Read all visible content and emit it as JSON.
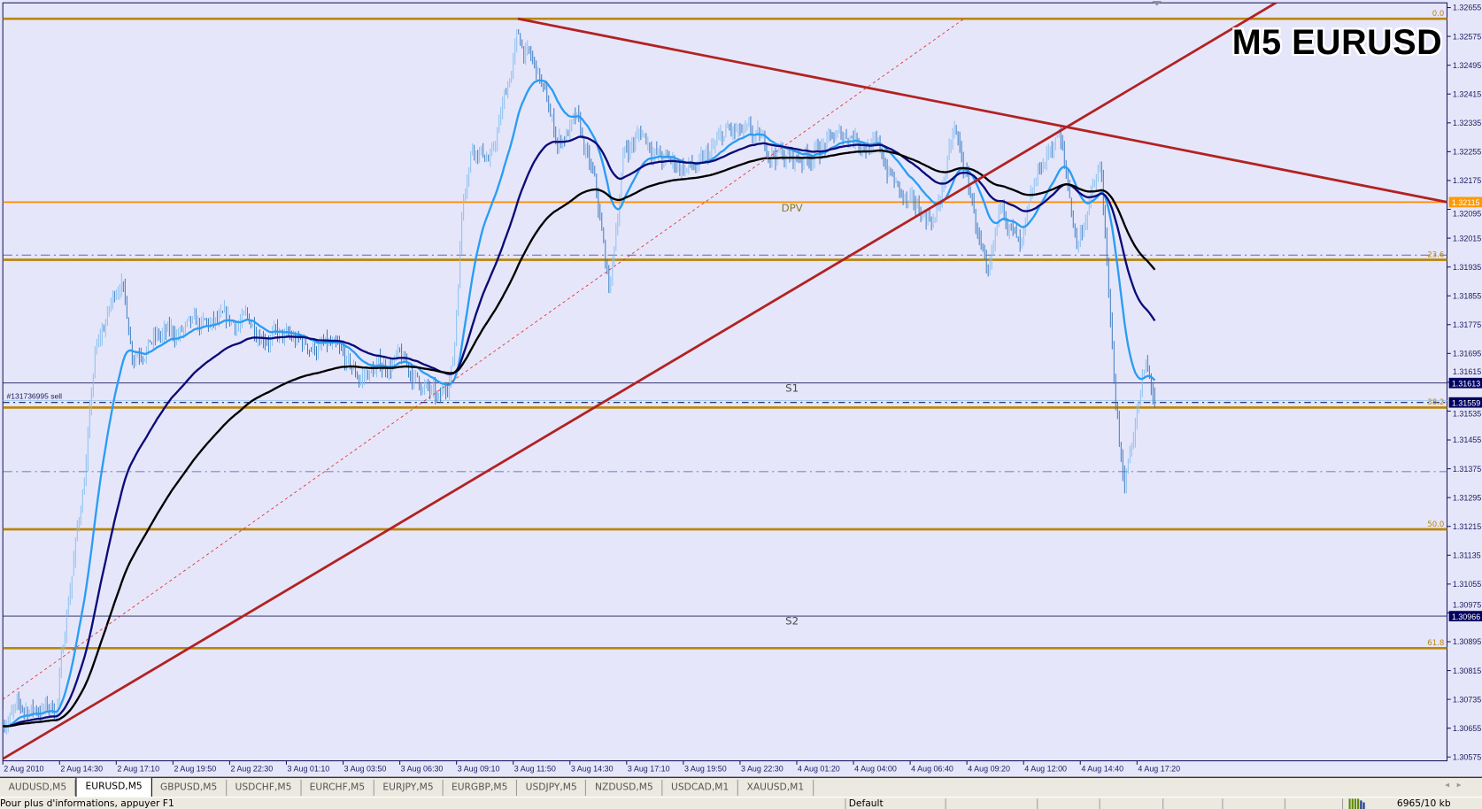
{
  "window": {
    "title": "M5 EURUSD",
    "symbol": "EURUSD",
    "timeframe": "M5"
  },
  "colors": {
    "background": "#e6e6fa",
    "frame": "#1a1a5e",
    "bar_up": "#86bff0",
    "bar_down": "#3478c0",
    "ma_fast": "#2a9df4",
    "ma_mid": "#0b0b78",
    "ma_slow": "#000000",
    "trendline": "#b22222",
    "fib": "#b8860b",
    "pivot": "#ff8c00",
    "support": "#1a1a5e",
    "label_navy": "#000060",
    "label_orange": "#ff9900",
    "dashdot": "#4a5aa8"
  },
  "chart_data": {
    "type": "ohlc-bar",
    "price_axis": {
      "range": [
        1.30575,
        1.32655
      ],
      "ticks": [
        "1.32655",
        "1.32575",
        "1.32495",
        "1.32415",
        "1.32335",
        "1.32255",
        "1.32175",
        "1.32095",
        "1.32015",
        "1.31935",
        "1.31855",
        "1.31775",
        "1.31695",
        "1.31615",
        "1.31535",
        "1.31455",
        "1.31375",
        "1.31295",
        "1.31215",
        "1.31135",
        "1.31055",
        "1.30975",
        "1.30895",
        "1.30815",
        "1.30735",
        "1.30655",
        "1.30575"
      ]
    },
    "time_axis": {
      "ticks": [
        "2 Aug 2010",
        "2 Aug 14:30",
        "2 Aug 17:10",
        "2 Aug 19:50",
        "2 Aug 22:30",
        "3 Aug 01:10",
        "3 Aug 03:50",
        "3 Aug 06:30",
        "3 Aug 09:10",
        "3 Aug 11:50",
        "3 Aug 14:30",
        "3 Aug 17:10",
        "3 Aug 19:50",
        "3 Aug 22:30",
        "4 Aug 01:20",
        "4 Aug 04:00",
        "4 Aug 06:40",
        "4 Aug 09:20",
        "4 Aug 12:00",
        "4 Aug 14:40",
        "4 Aug 17:20"
      ]
    },
    "price_path": [
      [
        "2 Aug 11:50",
        1.30683
      ],
      [
        "2 Aug 13:02",
        1.30709
      ],
      [
        "2 Aug 14:22",
        1.30709
      ],
      [
        "2 Aug 14:49",
        1.30971
      ],
      [
        "2 Aug 15:42",
        1.31364
      ],
      [
        "2 Aug 16:09",
        1.31679
      ],
      [
        "2 Aug 16:49",
        1.3181
      ],
      [
        "2 Aug 17:23",
        1.31915
      ],
      [
        "2 Aug 17:55",
        1.31705
      ],
      [
        "2 Aug 18:49",
        1.31732
      ],
      [
        "2 Aug 20:35",
        1.31758
      ],
      [
        "2 Aug 23:15",
        1.31784
      ],
      [
        "3 Aug 01:02",
        1.31732
      ],
      [
        "3 Aug 03:15",
        1.31705
      ],
      [
        "3 Aug 04:35",
        1.31627
      ],
      [
        "3 Aug 06:22",
        1.31679
      ],
      [
        "3 Aug 07:42",
        1.31601
      ],
      [
        "3 Aug 08:22",
        1.31548
      ],
      [
        "3 Aug 09:02",
        1.31679
      ],
      [
        "3 Aug 09:29",
        1.32151
      ],
      [
        "3 Aug 09:55",
        1.32283
      ],
      [
        "3 Aug 10:49",
        1.3223
      ],
      [
        "3 Aug 12:03",
        1.32571
      ],
      [
        "3 Aug 13:02",
        1.32466
      ],
      [
        "3 Aug 13:55",
        1.32283
      ],
      [
        "3 Aug 14:49",
        1.32335
      ],
      [
        "3 Aug 15:42",
        1.32151
      ],
      [
        "3 Aug 16:22",
        1.31863
      ],
      [
        "3 Aug 17:02",
        1.32256
      ],
      [
        "3 Aug 17:55",
        1.32309
      ],
      [
        "3 Aug 18:49",
        1.3223
      ],
      [
        "3 Aug 20:35",
        1.32204
      ],
      [
        "3 Aug 21:55",
        1.32309
      ],
      [
        "3 Aug 23:15",
        1.32283
      ],
      [
        "4 Aug 01:02",
        1.3223
      ],
      [
        "4 Aug 02:49",
        1.32283
      ],
      [
        "4 Aug 03:42",
        1.32309
      ],
      [
        "4 Aug 05:02",
        1.32256
      ],
      [
        "4 Aug 06:22",
        1.32099
      ],
      [
        "4 Aug 07:42",
        1.32073
      ],
      [
        "4 Aug 08:35",
        1.32309
      ],
      [
        "4 Aug 09:29",
        1.32099
      ],
      [
        "4 Aug 10:09",
        1.31863
      ],
      [
        "4 Aug 10:49",
        1.32125
      ],
      [
        "4 Aug 11:42",
        1.31968
      ],
      [
        "4 Aug 12:35",
        1.32204
      ],
      [
        "4 Aug 13:29",
        1.32309
      ],
      [
        "4 Aug 14:22",
        1.31994
      ],
      [
        "4 Aug 14:49",
        1.32099
      ],
      [
        "4 Aug 15:29",
        1.32204
      ],
      [
        "4 Aug 15:55",
        1.31758
      ],
      [
        "4 Aug 16:22",
        1.31417
      ],
      [
        "4 Aug 16:35",
        1.31338
      ],
      [
        "4 Aug 17:02",
        1.31496
      ],
      [
        "4 Aug 17:34",
        1.31655
      ],
      [
        "4 Aug 18:01",
        1.31561
      ]
    ],
    "levels": [
      {
        "name": "fib-0",
        "price": 1.32624,
        "style": "fib",
        "label": "0.0"
      },
      {
        "name": "pivot-dpv",
        "price": 1.32115,
        "style": "pivot",
        "label": "DPV",
        "axis_label": "1.32115"
      },
      {
        "name": "dashdot-upper",
        "price": 1.31968,
        "style": "dashdot",
        "label": ""
      },
      {
        "name": "fib-23.6",
        "price": 1.31955,
        "style": "fib",
        "label": "23.6"
      },
      {
        "name": "support-s1",
        "price": 1.31613,
        "style": "support",
        "label": "S1",
        "axis_label": "1.31613"
      },
      {
        "name": "order-line",
        "price": 1.31559,
        "style": "order",
        "label": "#131736995 sell",
        "axis_label": "1.31559"
      },
      {
        "name": "fib-38.2",
        "price": 1.31545,
        "style": "fib",
        "label": "38.2"
      },
      {
        "name": "dashdot-lower",
        "price": 1.31367,
        "style": "dashdot",
        "label": ""
      },
      {
        "name": "fib-50.0",
        "price": 1.31207,
        "style": "fib",
        "label": "50.0"
      },
      {
        "name": "support-s2",
        "price": 1.30966,
        "style": "support",
        "label": "S2",
        "axis_label": "1.30966"
      },
      {
        "name": "fib-61.8",
        "price": 1.30877,
        "style": "fib",
        "label": "61.8"
      }
    ],
    "trendlines": [
      {
        "name": "trendline-descending",
        "from": [
          "3 Aug 12:03",
          1.32624
        ],
        "to": [
          "5 Aug 07:45",
          1.32115
        ],
        "style": "thick"
      },
      {
        "name": "trendline-ascending",
        "from": [
          "2 Aug 11:50",
          1.3057
        ],
        "to": [
          "4 Aug 23:55",
          1.32676
        ],
        "style": "thick"
      },
      {
        "name": "trendline-dotted",
        "from": [
          "2 Aug 11:50",
          1.30735
        ],
        "to": [
          "4 Aug 09:02",
          1.32624
        ],
        "style": "dotted"
      }
    ]
  },
  "tabs": [
    {
      "label": "AUDUSD,M5",
      "active": false
    },
    {
      "label": "EURUSD,M5",
      "active": true
    },
    {
      "label": "GBPUSD,M5",
      "active": false
    },
    {
      "label": "USDCHF,M5",
      "active": false
    },
    {
      "label": "EURCHF,M5",
      "active": false
    },
    {
      "label": "EURJPY,M5",
      "active": false
    },
    {
      "label": "EURGBP,M5",
      "active": false
    },
    {
      "label": "USDJPY,M5",
      "active": false
    },
    {
      "label": "NZDUSD,M5",
      "active": false
    },
    {
      "label": "USDCAD,M1",
      "active": false
    },
    {
      "label": "XAUUSD,M1",
      "active": false
    }
  ],
  "tab_scroll": {
    "left": "◂",
    "right": "▸"
  },
  "status": {
    "help": "Pour plus d'informations, appuyer F1",
    "profile": "Default",
    "connection_icon": "bars-icon",
    "traffic": "6965/10 kb"
  }
}
